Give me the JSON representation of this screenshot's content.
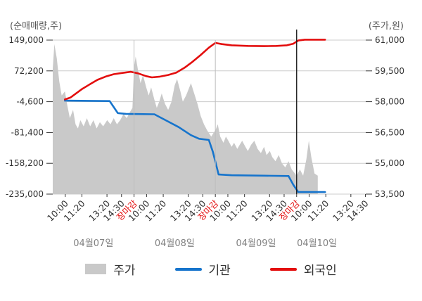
{
  "colors": {
    "accent_red": "#e30e0e",
    "line_blue": "#1674cc",
    "area_gray": "#c9c9c9",
    "grid": "#cccccc",
    "tick_text": "#333333",
    "muted_text": "#828282",
    "boundary_minor": "#bdbdbd",
    "boundary_major": "#1c1c1c"
  },
  "legend": [
    {
      "label": "주가",
      "type": "area",
      "color": "#c9c9c9"
    },
    {
      "label": "기관",
      "type": "line",
      "color": "#1674cc"
    },
    {
      "label": "외국인",
      "type": "line",
      "color": "#e30e0e"
    }
  ],
  "chart_data": {
    "type": "combo",
    "x_domain": [
      0,
      3.85
    ],
    "left_axis": {
      "title": "(순매매량,주)",
      "ticks": [
        149000,
        72200,
        -4600,
        -81400,
        -158200,
        -235000
      ],
      "max": 149000,
      "min": -235000
    },
    "right_axis": {
      "title": "(주가,원)",
      "ticks": [
        61000,
        59500,
        58000,
        56500,
        55000,
        53500
      ],
      "max": 61000,
      "min": 53500
    },
    "x_ticks": [
      {
        "pos": 0.154,
        "label": "10:00",
        "emphasis": false
      },
      {
        "pos": 0.359,
        "label": "11:20",
        "emphasis": false
      },
      {
        "pos": 0.667,
        "label": "13:20",
        "emphasis": false
      },
      {
        "pos": 0.846,
        "label": "14:30",
        "emphasis": false
      },
      {
        "pos": 1.0,
        "label": "장마감",
        "emphasis": true
      },
      {
        "pos": 1.154,
        "label": "10:00",
        "emphasis": false
      },
      {
        "pos": 1.359,
        "label": "11:20",
        "emphasis": false
      },
      {
        "pos": 1.667,
        "label": "13:20",
        "emphasis": false
      },
      {
        "pos": 1.846,
        "label": "14:30",
        "emphasis": false
      },
      {
        "pos": 2.0,
        "label": "장마감",
        "emphasis": true
      },
      {
        "pos": 2.154,
        "label": "10:00",
        "emphasis": false
      },
      {
        "pos": 2.359,
        "label": "11:20",
        "emphasis": false
      },
      {
        "pos": 2.667,
        "label": "13:20",
        "emphasis": false
      },
      {
        "pos": 2.846,
        "label": "14:30",
        "emphasis": false
      },
      {
        "pos": 3.0,
        "label": "장마감",
        "emphasis": true
      },
      {
        "pos": 3.154,
        "label": "10:00",
        "emphasis": false
      },
      {
        "pos": 3.359,
        "label": "11:20",
        "emphasis": false
      },
      {
        "pos": 3.667,
        "label": "13:20",
        "emphasis": false
      },
      {
        "pos": 3.846,
        "label": "14:30",
        "emphasis": false
      }
    ],
    "day_labels": [
      {
        "label": "04월07일",
        "pos": 0.5
      },
      {
        "label": "04월08일",
        "pos": 1.5
      },
      {
        "label": "04월09일",
        "pos": 2.5
      },
      {
        "label": "04월10일",
        "pos": 3.25
      }
    ],
    "day_boundaries": [
      {
        "pos": 1.0,
        "style": "minor"
      },
      {
        "pos": 2.0,
        "style": "minor"
      },
      {
        "pos": 3.0,
        "style": "major"
      }
    ],
    "series": [
      {
        "name": "주가",
        "type": "area",
        "axis": "right",
        "color": "#c9c9c9",
        "points": [
          [
            0.0,
            59600
          ],
          [
            0.02,
            60800
          ],
          [
            0.05,
            60100
          ],
          [
            0.08,
            59000
          ],
          [
            0.11,
            58300
          ],
          [
            0.15,
            58500
          ],
          [
            0.18,
            57800
          ],
          [
            0.21,
            57200
          ],
          [
            0.25,
            57600
          ],
          [
            0.28,
            56900
          ],
          [
            0.31,
            56700
          ],
          [
            0.34,
            57100
          ],
          [
            0.38,
            56800
          ],
          [
            0.42,
            57200
          ],
          [
            0.46,
            56800
          ],
          [
            0.5,
            57100
          ],
          [
            0.54,
            56700
          ],
          [
            0.58,
            57000
          ],
          [
            0.62,
            56800
          ],
          [
            0.67,
            57100
          ],
          [
            0.71,
            56900
          ],
          [
            0.75,
            57200
          ],
          [
            0.79,
            56900
          ],
          [
            0.83,
            57100
          ],
          [
            0.87,
            57400
          ],
          [
            0.91,
            57200
          ],
          [
            0.95,
            57500
          ],
          [
            0.98,
            57700
          ],
          [
            1.0,
            59700
          ],
          [
            1.02,
            60200
          ],
          [
            1.05,
            59500
          ],
          [
            1.08,
            58900
          ],
          [
            1.11,
            59300
          ],
          [
            1.15,
            58700
          ],
          [
            1.18,
            58300
          ],
          [
            1.21,
            58700
          ],
          [
            1.25,
            58100
          ],
          [
            1.28,
            57700
          ],
          [
            1.31,
            58000
          ],
          [
            1.34,
            58400
          ],
          [
            1.38,
            57900
          ],
          [
            1.42,
            57600
          ],
          [
            1.46,
            58000
          ],
          [
            1.5,
            58800
          ],
          [
            1.53,
            59100
          ],
          [
            1.57,
            58500
          ],
          [
            1.6,
            58000
          ],
          [
            1.64,
            58300
          ],
          [
            1.67,
            58600
          ],
          [
            1.7,
            58900
          ],
          [
            1.74,
            58400
          ],
          [
            1.78,
            57900
          ],
          [
            1.82,
            57300
          ],
          [
            1.86,
            56900
          ],
          [
            1.9,
            56600
          ],
          [
            1.95,
            56300
          ],
          [
            1.98,
            56500
          ],
          [
            2.0,
            56600
          ],
          [
            2.03,
            56900
          ],
          [
            2.06,
            56300
          ],
          [
            2.1,
            56000
          ],
          [
            2.13,
            56300
          ],
          [
            2.16,
            56100
          ],
          [
            2.2,
            55800
          ],
          [
            2.23,
            56000
          ],
          [
            2.27,
            55700
          ],
          [
            2.3,
            55900
          ],
          [
            2.33,
            56100
          ],
          [
            2.37,
            55800
          ],
          [
            2.4,
            55600
          ],
          [
            2.44,
            55900
          ],
          [
            2.48,
            56100
          ],
          [
            2.52,
            55700
          ],
          [
            2.56,
            55500
          ],
          [
            2.6,
            55800
          ],
          [
            2.63,
            55400
          ],
          [
            2.67,
            55600
          ],
          [
            2.7,
            55300
          ],
          [
            2.74,
            55100
          ],
          [
            2.78,
            55400
          ],
          [
            2.82,
            55000
          ],
          [
            2.86,
            54800
          ],
          [
            2.9,
            55100
          ],
          [
            2.94,
            54700
          ],
          [
            2.98,
            54500
          ],
          [
            3.0,
            54400
          ],
          [
            3.04,
            54700
          ],
          [
            3.08,
            54400
          ],
          [
            3.12,
            55200
          ],
          [
            3.15,
            56100
          ],
          [
            3.18,
            55300
          ],
          [
            3.22,
            54500
          ],
          [
            3.26,
            54400
          ]
        ]
      },
      {
        "name": "기관",
        "type": "line",
        "axis": "left",
        "color": "#1674cc",
        "points": [
          [
            0.15,
            -2000
          ],
          [
            0.45,
            -2500
          ],
          [
            0.7,
            -3000
          ],
          [
            0.74,
            -15000
          ],
          [
            0.8,
            -33000
          ],
          [
            0.9,
            -35000
          ],
          [
            1.25,
            -36000
          ],
          [
            1.4,
            -52000
          ],
          [
            1.55,
            -68000
          ],
          [
            1.7,
            -88000
          ],
          [
            1.8,
            -97000
          ],
          [
            1.92,
            -100000
          ],
          [
            1.97,
            -130000
          ],
          [
            2.04,
            -186000
          ],
          [
            2.2,
            -188000
          ],
          [
            2.6,
            -189000
          ],
          [
            2.9,
            -190000
          ],
          [
            2.96,
            -212000
          ],
          [
            3.02,
            -230000
          ],
          [
            3.35,
            -230000
          ]
        ]
      },
      {
        "name": "외국인",
        "type": "line",
        "axis": "left",
        "color": "#e30e0e",
        "points": [
          [
            0.15,
            1000
          ],
          [
            0.22,
            6000
          ],
          [
            0.3,
            18000
          ],
          [
            0.36,
            27000
          ],
          [
            0.45,
            38000
          ],
          [
            0.55,
            50000
          ],
          [
            0.65,
            58000
          ],
          [
            0.75,
            64000
          ],
          [
            0.85,
            67000
          ],
          [
            0.96,
            70000
          ],
          [
            1.05,
            66000
          ],
          [
            1.15,
            59000
          ],
          [
            1.22,
            56000
          ],
          [
            1.32,
            58000
          ],
          [
            1.42,
            62000
          ],
          [
            1.52,
            68000
          ],
          [
            1.62,
            80000
          ],
          [
            1.72,
            95000
          ],
          [
            1.82,
            112000
          ],
          [
            1.92,
            130000
          ],
          [
            2.0,
            142000
          ],
          [
            2.08,
            139000
          ],
          [
            2.2,
            136000
          ],
          [
            2.4,
            134500
          ],
          [
            2.6,
            134000
          ],
          [
            2.75,
            134500
          ],
          [
            2.88,
            136000
          ],
          [
            2.96,
            140000
          ],
          [
            3.02,
            148000
          ],
          [
            3.1,
            150000
          ],
          [
            3.35,
            150000
          ]
        ]
      }
    ]
  }
}
